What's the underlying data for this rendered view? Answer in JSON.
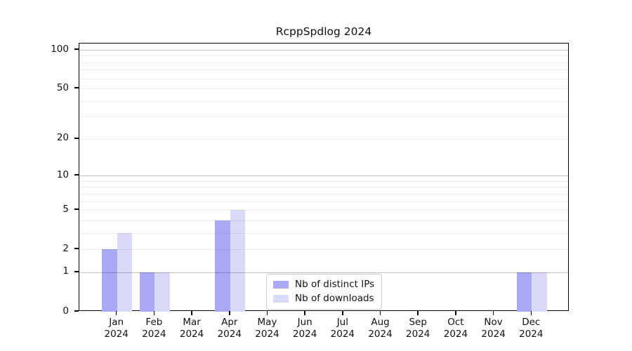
{
  "title": "RcppSpdlog 2024",
  "chart_data": {
    "type": "bar",
    "y_scale": "log1p",
    "title": "RcppSpdlog 2024",
    "xlabel": "",
    "ylabel": "",
    "categories": [
      "Jan",
      "Feb",
      "Mar",
      "Apr",
      "May",
      "Jun",
      "Jul",
      "Aug",
      "Sep",
      "Oct",
      "Nov",
      "Dec"
    ],
    "x_year_label": "2024",
    "series": [
      {
        "name": "Nb of distinct IPs",
        "color": "#a9a9f5",
        "values": [
          2,
          1,
          0,
          4,
          0,
          0,
          0,
          0,
          0,
          0,
          0,
          1
        ]
      },
      {
        "name": "Nb of downloads",
        "color": "#d9d9f8",
        "values": [
          3,
          1,
          0,
          5,
          0,
          0,
          0,
          0,
          0,
          0,
          0,
          1
        ]
      }
    ],
    "y_ticks": [
      0,
      1,
      2,
      5,
      10,
      20,
      50,
      100
    ],
    "ylim": [
      0,
      100
    ],
    "grid": {
      "enabled": true,
      "major_values": [
        1,
        10,
        100
      ],
      "minor_values": [
        2,
        3,
        4,
        5,
        6,
        7,
        8,
        9,
        20,
        30,
        40,
        50,
        60,
        70,
        80,
        90
      ]
    },
    "legend": {
      "position": "inside-lower-center",
      "entries": [
        "Nb of distinct IPs",
        "Nb of downloads"
      ]
    }
  },
  "colors": {
    "background": "#ffffff",
    "spine": "#000000",
    "text": "#111111",
    "legend_border": "#cccccc"
  }
}
